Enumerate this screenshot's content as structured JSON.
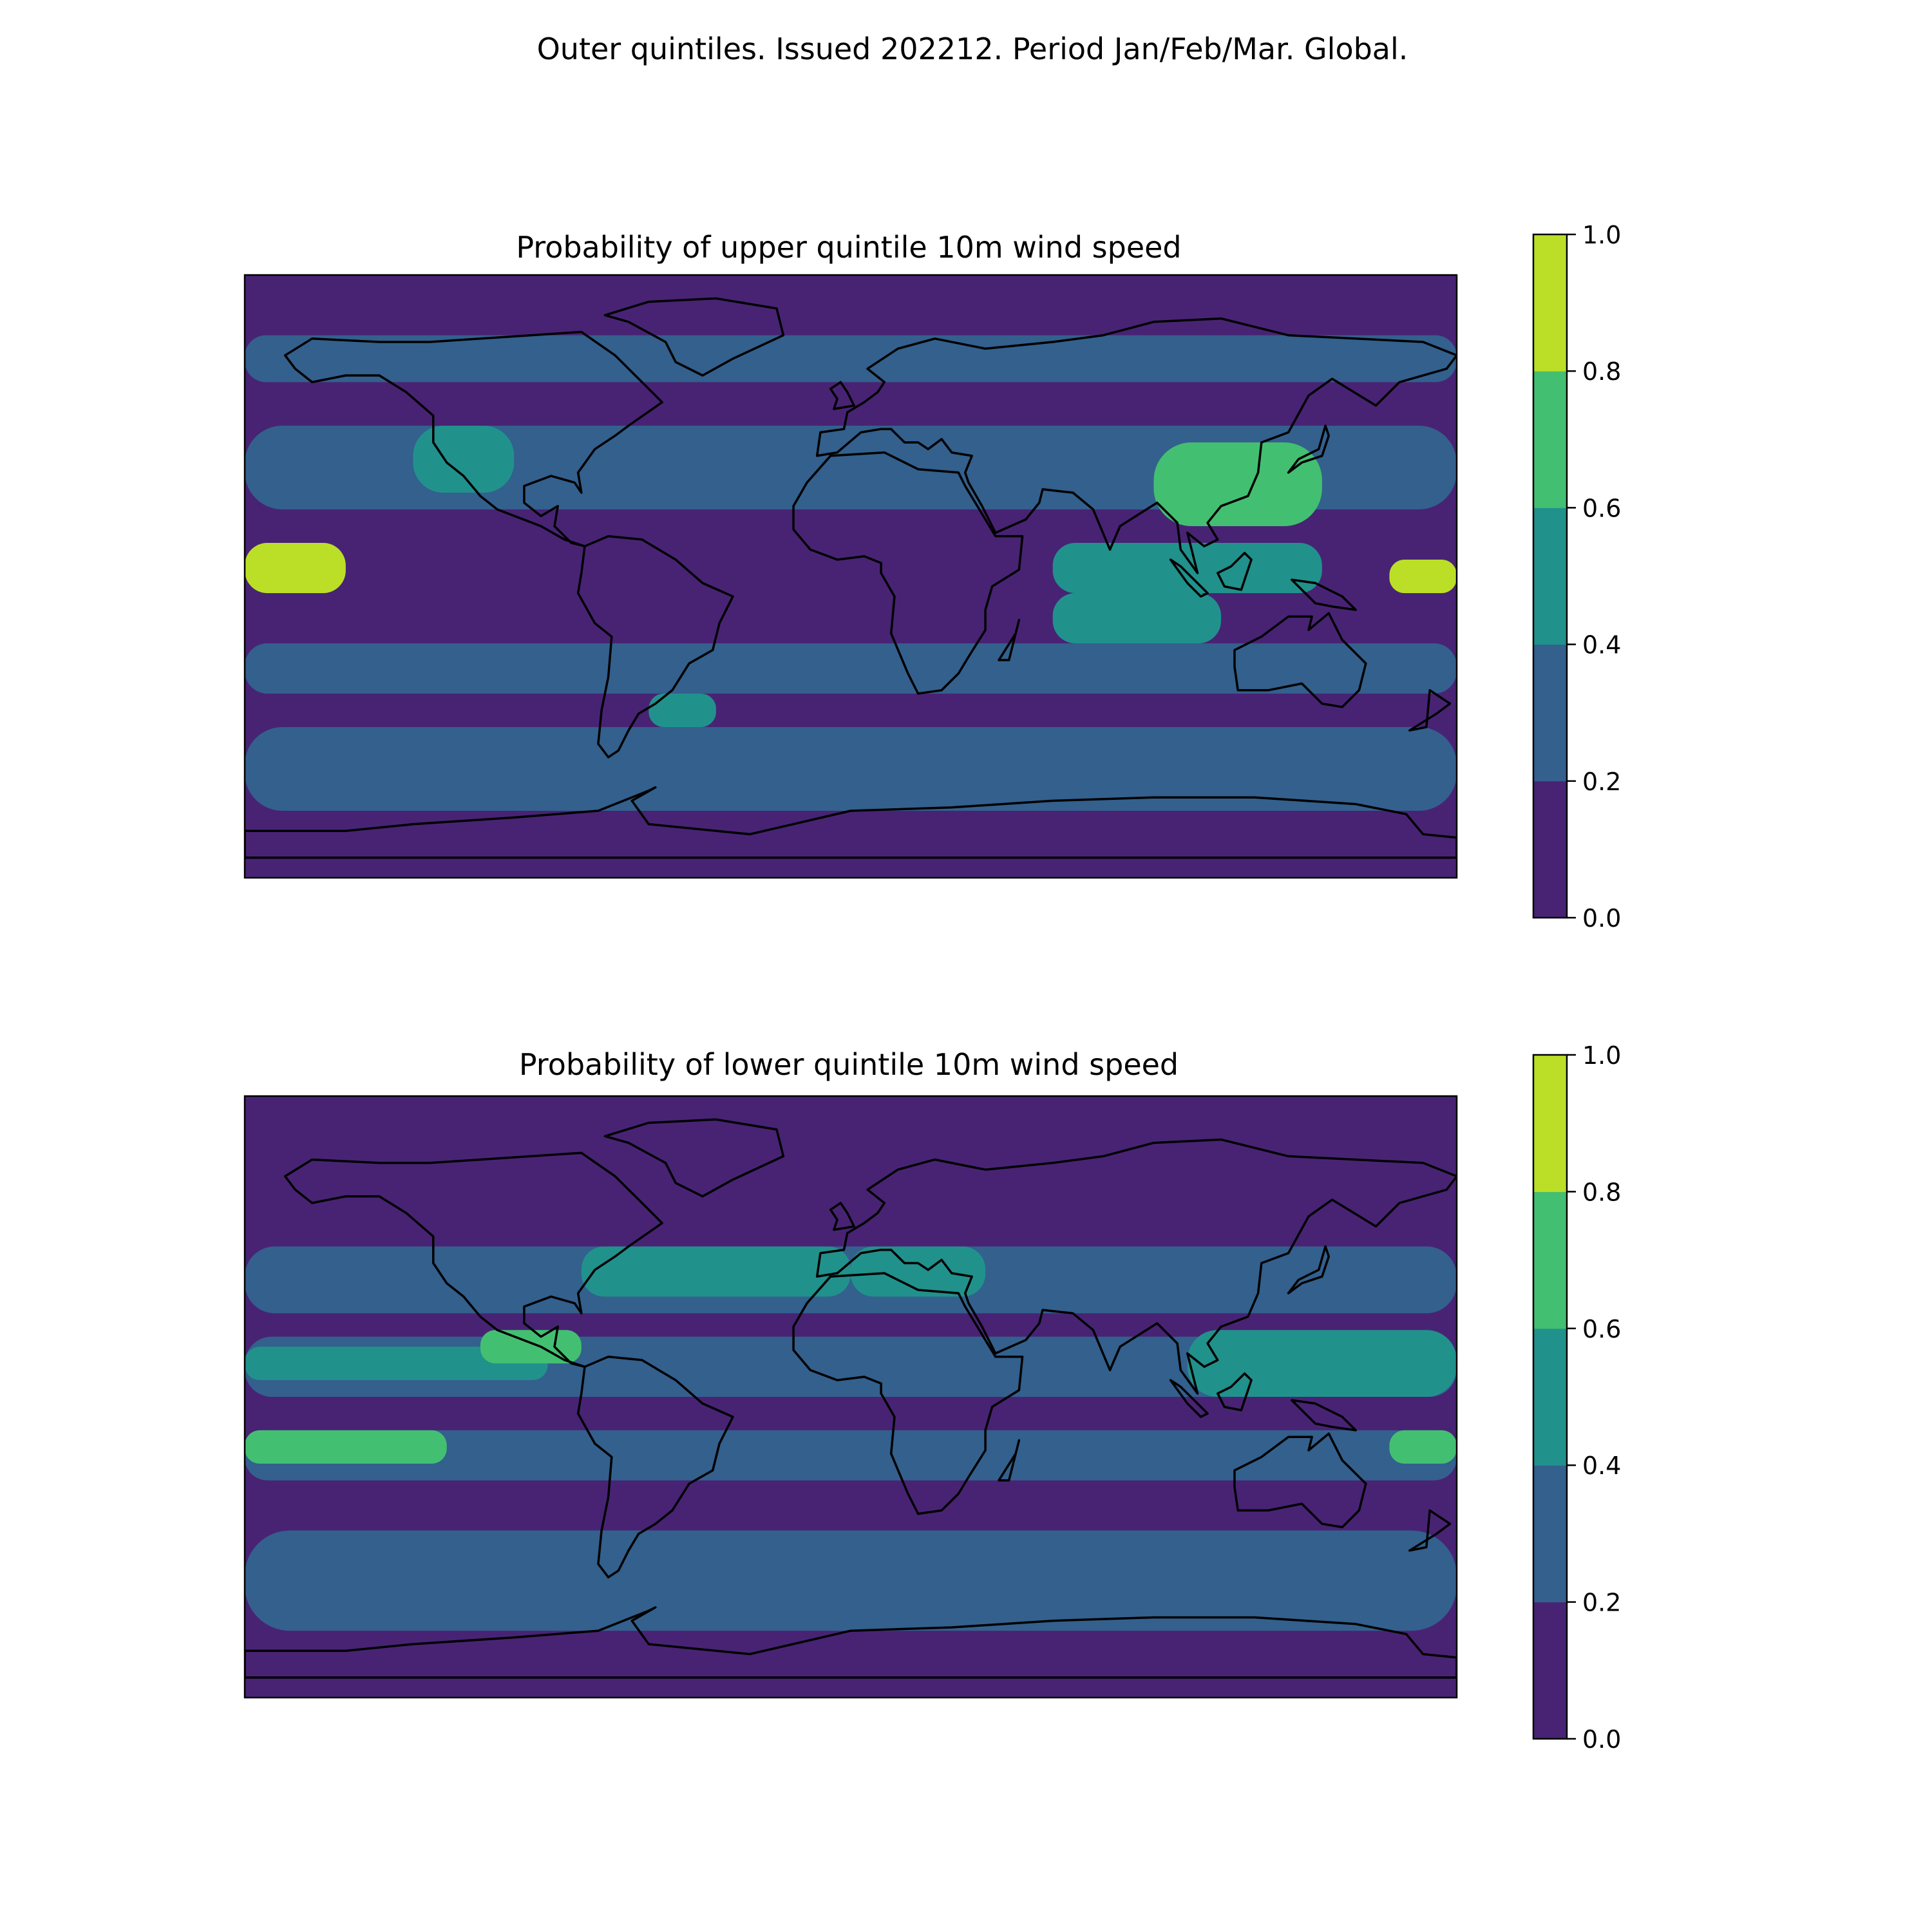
{
  "figure": {
    "title": "Outer quintiles. Issued 202212. Period Jan/Feb/Mar. Global."
  },
  "panels": [
    {
      "id": "upper",
      "title": "Probability of upper quintile 10m wind speed",
      "colorbar": {
        "ticks": [
          "0.0",
          "0.2",
          "0.4",
          "0.6",
          "0.8",
          "1.0"
        ]
      }
    },
    {
      "id": "lower",
      "title": "Probability of lower quintile 10m wind speed",
      "colorbar": {
        "ticks": [
          "0.0",
          "0.2",
          "0.4",
          "0.6",
          "0.8",
          "1.0"
        ]
      }
    }
  ],
  "colors": {
    "levels": [
      {
        "range": [
          0.0,
          0.2
        ],
        "color": "#482374"
      },
      {
        "range": [
          0.2,
          0.4
        ],
        "color": "#33608D"
      },
      {
        "range": [
          0.4,
          0.6
        ],
        "color": "#21918C"
      },
      {
        "range": [
          0.6,
          0.8
        ],
        "color": "#43BF71"
      },
      {
        "range": [
          0.8,
          1.0
        ],
        "color": "#BBDF27"
      }
    ],
    "coastline": "#000000"
  },
  "chart_data": [
    {
      "type": "heatmap",
      "title": "Probability of upper quintile 10m wind speed",
      "projection": "plate carree",
      "extent": {
        "lon": [
          -180,
          180
        ],
        "lat": [
          -90,
          90
        ]
      },
      "levels": [
        0.0,
        0.2,
        0.4,
        0.6,
        0.8,
        1.0
      ],
      "colorbar_ticks": [
        "0.0",
        "0.2",
        "0.4",
        "0.6",
        "0.8",
        "1.0"
      ],
      "background_level": 0.1,
      "regions": [
        {
          "lon": [
            -180,
            180
          ],
          "lat": [
            58,
            72
          ],
          "value": 0.3
        },
        {
          "lon": [
            -180,
            180
          ],
          "lat": [
            20,
            45
          ],
          "value": 0.3
        },
        {
          "lon": [
            -180,
            180
          ],
          "lat": [
            -35,
            -20
          ],
          "value": 0.3
        },
        {
          "lon": [
            -180,
            180
          ],
          "lat": [
            -70,
            -45
          ],
          "value": 0.3
        },
        {
          "lon": [
            -180,
            -150
          ],
          "lat": [
            -5,
            10
          ],
          "value": 0.9
        },
        {
          "lon": [
            160,
            180
          ],
          "lat": [
            -5,
            5
          ],
          "value": 0.9
        },
        {
          "lon": [
            60,
            140
          ],
          "lat": [
            -5,
            10
          ],
          "value": 0.5
        },
        {
          "lon": [
            60,
            110
          ],
          "lat": [
            -20,
            -5
          ],
          "value": 0.5
        },
        {
          "lon": [
            90,
            140
          ],
          "lat": [
            15,
            40
          ],
          "value": 0.7
        },
        {
          "lon": [
            -130,
            -100
          ],
          "lat": [
            25,
            45
          ],
          "value": 0.5
        },
        {
          "lon": [
            -60,
            -40
          ],
          "lat": [
            -45,
            -35
          ],
          "value": 0.5
        }
      ]
    },
    {
      "type": "heatmap",
      "title": "Probability of lower quintile 10m wind speed",
      "projection": "plate carree",
      "extent": {
        "lon": [
          -180,
          180
        ],
        "lat": [
          -90,
          90
        ]
      },
      "levels": [
        0.0,
        0.2,
        0.4,
        0.6,
        0.8,
        1.0
      ],
      "colorbar_ticks": [
        "0.0",
        "0.2",
        "0.4",
        "0.6",
        "0.8",
        "1.0"
      ],
      "background_level": 0.1,
      "regions": [
        {
          "lon": [
            -180,
            180
          ],
          "lat": [
            25,
            45
          ],
          "value": 0.3
        },
        {
          "lon": [
            -180,
            180
          ],
          "lat": [
            0,
            18
          ],
          "value": 0.3
        },
        {
          "lon": [
            -180,
            180
          ],
          "lat": [
            -25,
            -10
          ],
          "value": 0.3
        },
        {
          "lon": [
            -180,
            180
          ],
          "lat": [
            -70,
            -40
          ],
          "value": 0.3
        },
        {
          "lon": [
            -80,
            0
          ],
          "lat": [
            30,
            45
          ],
          "value": 0.6
        },
        {
          "lon": [
            -180,
            -90
          ],
          "lat": [
            5,
            15
          ],
          "value": 0.5
        },
        {
          "lon": [
            -110,
            -80
          ],
          "lat": [
            10,
            20
          ],
          "value": 0.7
        },
        {
          "lon": [
            -180,
            -120
          ],
          "lat": [
            -20,
            -10
          ],
          "value": 0.7
        },
        {
          "lon": [
            100,
            180
          ],
          "lat": [
            0,
            20
          ],
          "value": 0.5
        },
        {
          "lon": [
            160,
            180
          ],
          "lat": [
            -20,
            -10
          ],
          "value": 0.7
        },
        {
          "lon": [
            0,
            40
          ],
          "lat": [
            30,
            45
          ],
          "value": 0.5
        }
      ]
    }
  ]
}
